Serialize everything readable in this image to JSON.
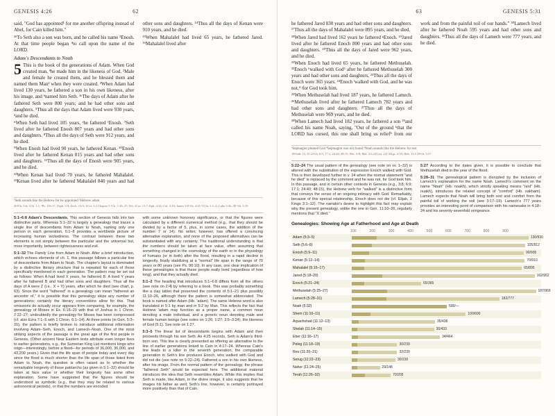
{
  "leftPage": {
    "book": "GENESIS 4:26",
    "pageNum": "62",
    "lead": "said, \"God has appointed¹ for me another offspring instead of Abel, for Cain killed him.\"",
    "v26": "²⁶To Seth also a son was born, and he called his name ³Enosh. At that time people began ⁴to call upon the name of the LORD.",
    "sectHead": "Adam's Descendants to Noah",
    "ch5start": "This is the book of the generations of Adam. When God created man, ªhe made him in the likeness of God. ²Male and female he created them, and he blessed them and named them Man² when they were created. ³When Adam had lived 130 years, he fathered a son in his own likeness, after his image, and ᵇnamed him Seth. ⁴ᶜThe days of Adam after he fathered Seth were 800 years; and he had other sons and daughters. ⁵Thus all the days that Adam lived were 930 years, ᵈand he died.",
    "col2a": "⁶When Seth had lived 105 years, ᵉhe fathered ᶠEnosh. ⁷Seth lived after he fathered Enosh 807 years and had other sons and daughters. ⁸Thus all the days of Seth were 912 years, and he died.",
    "col2b": "⁹When Enosh had lived 90 years, he fathered Kenan. ¹⁰Enosh lived after he fathered Kenan 815 years and had other sons and daughters. ¹¹Thus all the days of Enosh were 905 years, and he died.",
    "col2c": "¹²When Kenan had lived 70 years, he fathered Mahalalel. ¹³Kenan lived after he fathered Mahalalel 840 years and had other sons and daughters. ¹⁴Thus all the days of Kenan were 910 years, and he died.",
    "col2d": "¹⁵When Mahalalel had lived 65 years, he fathered Jared. ¹⁶Mahalalel lived after",
    "footnote": "¹Seth sounds like the Hebrew for he appointed ²Hebrew adam",
    "xref": "26¹Ch. 5:6; 1Ch. 1:1; ²Ps. 116:17; Zeph. 3:9; Zech. 13:9; 1Cor. 1:2 Chapter 5 ¹Ch. 1:26, 27; 9:6; 1Cor. 11:7; Eph. 4:24; Col. 3:10; James 3:9 ²ch. 4:25 ³1Chr. 1:1–4; Luke 3:36–38 ⁴ch. 3:19",
    "commentaryTitle1": "5:1–6:8 Adam's Descendants.",
    "commentary1a": "This section of Genesis falls into two distinctive parts. Whereas 5:1–32 is largely a genealogy that traces a single line of descendants from Adam to Noah, naming only one person in each generation, 6:1–8 provides a worldwide picture of increasing human wickedness. The contrast between these two elements is not simply between the particular and the universal but, more importantly, between righteousness and evil.",
    "commentaryTitle2": "5:1–32",
    "commentary1b": "The Family Line from Adam to Noah. After a brief introduction, which echoes elements of ch. 1, this passage follows a particular line of descendants from Adam to Noah. The chapter's layout is dominated by a distinctive literary structure that is repeated for each of those specifically mentioned in each generation. The pattern may be set out as follows: When A had lived X years, he fathered B. A lived Y years after he fathered B and had other sons and daughters. Thus all the days of A were Z (i.e., X + Y) years, after which he died (see chart, p. 63). Since the word \"fathered\" in a genealogy can mean \"fathered an ancestor of,\" it is possible that this genealogy skips any number of generations; certainly the literary conventions allow for this. That omissions do actually occur appears from comparing, for example, the genealogy of Moses in Ex. 6:16–20 with that of Joshua in 1 Chron. 7:22–27; undoubtedly the genealogy for Moses has been compressed (cf. also Ezra 7:1–5 with 1 Chron. 6:1–14). At three points (in Gen. 5:3–31), the pattern is briefly broken to introduce additional information involving Adam–Seth, Enoch, and Lamech–Noah. One of the most striking aspects of the passage is the great age of the first people in Genesis. (Other ancient Near Eastern texts attribute even longer lives to earlier generations, e.g., the Sumerian King List mentions kings who reign—interestingly, before a flood—for periods of 36,000, 36,000, and 43,200 years.) Given that the life span of people today and every day since the flood is much shorter than the life span of those listed from Adam to Noah, the question is often raised as to whether the remarkable longevity of these patriarchs (as given in 5:1–32) should be taken at face value or whether their longevity has some other explanation. Some have suggested that the figures should be understood as symbolic (e.g., that they may be related to various astronomical periods), or that the numbers are encoded",
    "commentary1c": "with some unknown honorary significance, or that the figures were calculated by a different numerical method (e.g., that they should be divided by a factor of 5, plus, in some cases, the addition of the number 7 or 14). No writer, however, has offered a convincing alternative explanation, and none of the proposed alternatives can be substantiated with any certainty. The traditional understanding is that the numbers should be taken at face value, often assuming that something changed in the cosmology of the earth or in the physiology of humans (or in both) after the flood, resulting in a rapid decline in longevity, finally stabilizing at a \"normal\" life span in the range of 70 years or 80 years (see Ps. 90:10). In any case, one clear implication of these genealogies is that these people really lived (regardless of how long), and that they actually died.",
    "commentaryTitle3": "5:1–2",
    "commentary1d": "The heading that introduces 5:1–6:8 differs from all the others (see note on 2:4) by referring to a book. This was probably something like a clay tablet that preserved the contents of 5:1–21 plus possibly 11:10–26, although there the pattern is somewhat abbreviated. The book is named after Adam (Hb. 'adam). The same Hebrew word is also translated in 5:1 by man and in 5:2 by Man. This reflects the fact that Hebrew 'adam may function as a proper name, a common noun denoting a male individual, and a generic noun denoting male and female human beings (see notes on 1:26; 1:27; 2:5–3:24). the likeness of God (5:1). See note on 1:27.",
    "commentaryTitle4": "5:3–5",
    "commentary1e": "The linear list of descendants begins with Adam and then proceeds through his son Seth. As 4:25 records, Seth is Adam's third-born son. This line is clearly presented as offering an alternative to the line of earlier generations linked to Cain in 4:17–24. Whereas Cain's line leads to a killer in the seventh generation, the comparable generation in Seth's line produces Enoch, who walked with God and did not die (see note on 5:22–24). Fathered a son in his own likeness, after his image. From the normal pattern of the genealogy, the phrase \"fathered Seth\" would be expected here. The additional material introduces the idea that Seth resembles Adam. While this implies that Seth is made, like Adam, in the divine image, it also suggests that he images his father as well; Seth's line, however, is certainly portrayed more positively than that of Cain."
  },
  "rightPage": {
    "book": "GENESIS 5:31",
    "pageNum": "63",
    "col1a": "he fathered Jared 830 years and had other sons and daughters. ¹⁷Thus all the days of Mahalalel were 895 years, and he died.",
    "col1b": "¹⁸When Jared had lived 162 years he fathered ᵍEnoch. ¹⁹Jared lived after he fathered Enoch 800 years and had other sons and daughters. ²⁰Thus all the days of Jared were 962 years, and he died.",
    "col1c": "²¹When Enoch had lived 65 years, he fathered Methuselah. ²²Enoch ʰwalked with God³ after he fathered Methuselah 300 years and had other sons and daughters. ²³Thus all the days of Enoch were 365 years. ²⁴Enoch ⁱwalked with God, and he was not,⁴ ʲfor God took him.",
    "col2a": "²⁵When Methuselah had lived 187 years, he fathered Lamech. ²⁶Methuselah lived after he fathered Lamech 782 years and had other sons and daughters. ²⁷Thus all the days of Methuselah were 969 years, and he died.",
    "col2b": "²⁸When Lamech had lived 182 years, he fathered a son ²⁹and called his name Noah, saying, \"Out of the ground ᵏthat the LORD has cursed, this one shall bring us relief⁵ from our work and from the painful toil of our hands.\" ³⁰Lamech lived after he fathered Noah 595 years and had other sons and daughters. ³¹Thus all the days of Lamech were 777 years, and he died.",
    "footnote": "³Septuagint pleased God ⁴Septuagint was not found ⁵Noah sounds like the Hebrew for rest",
    "xref": "18ᵍJude 14, 15 22ʰch. 6:9; 17:1; 24:40; 48:15; Mic. 6:8; Mal. 2:6 24ⁱ[ver. 22] ʲ2Kgs. 2:10; Heb. 11:5 29ᵏch. 3:17",
    "commentaryTitle5": "5:22–24",
    "commentary2a": "The usual pattern of the genealogy (see note on vv. 1–32) is altered with the substitution of the expression Enoch walked with God. This is then developed further in v. 24 when the normal statement \"and he died\" is replaced by the comment and he was not, for God took him. In this passage, and in certain other contexts in Genesis (e.g., 3:8; 6:9; 17:1; 24:40; 48:15), the Hebrew verb for \"walked\" is a distinctive form that conveys the sense of an ongoing intimacy with God. Remarkably, because of this special relationship, Enoch does not die (cf. Elijah, 2 Kings 2:1–12). The narrator's desire to highlight this fact may explain why the present genealogy, unlike the one in Gen. 11:10–26, regularly mentions that \"X died.\"",
    "commentaryTitle6": "5:27",
    "commentary2b": "According to the dates given, it is possible to conclude that Methuselah died in the year of the flood.",
    "commentaryTitle7": "5:28–31",
    "commentary2c": "The genealogical pattern is disrupted by the inclusion of Lamech's explanation for the name Noah. Lamech's comment on the name \"Noah\" (Hb. noakh), which strictly speaking means \"rest\" (Hb. nuakh), introduces the related concept of \"comfort\" (Hb. nakham). Lamech expects that Noah will bring both rest and comfort from the painful toil of working the soil (see 3:17–19). Lamech's 777 years provides an interesting point of comparison with his namesake in 4:18–24 and his seventy-sevenfold vengeance."
  },
  "chartTitle": "Genealogies: Showing Age at Fatherhood and Age at Death",
  "axisLabels": [
    "100",
    "200",
    "300",
    "400",
    "500",
    "600",
    "700",
    "800",
    "900"
  ],
  "chartRows": [
    {
      "name": "Adam (5:3–5)",
      "father": 130,
      "death": 930
    },
    {
      "name": "Seth (5:6–8)",
      "father": 105,
      "death": 912
    },
    {
      "name": "Enosh (5:9–11)",
      "father": 90,
      "death": 905
    },
    {
      "name": "Kenan (5:12–14)",
      "father": 70,
      "death": 910
    },
    {
      "name": "Mahalalel (5:15–17)",
      "father": 65,
      "death": 895
    },
    {
      "name": "Jared (5:18–20)",
      "father": 162,
      "death": 962
    },
    {
      "name": "Enoch (5:21–24)",
      "father": 65,
      "death": 365
    },
    {
      "name": "Methuselah (5:25–27)",
      "father": 187,
      "death": 969
    },
    {
      "name": "Lamech (5:28–31)",
      "father": 182,
      "death": 777
    },
    {
      "name": "Noah (5:32)",
      "father": 500,
      "death": null
    },
    {
      "name": "Shem (11:10–11)",
      "father": 100,
      "death": 600
    },
    {
      "name": "Arpachshad (11:12–13)",
      "father": 35,
      "death": 438
    },
    {
      "name": "Shelah (11:14–15)",
      "father": 30,
      "death": 433
    },
    {
      "name": "Eber (11:16–17)",
      "father": 34,
      "death": 464
    },
    {
      "name": "Peleg (11:18–19)",
      "father": 30,
      "death": 239
    },
    {
      "name": "Reu (11:20–21)",
      "father": 32,
      "death": 239
    },
    {
      "name": "Serug (11:22–23)",
      "father": 30,
      "death": 230
    },
    {
      "name": "Nahor (11:24–25)",
      "father": 29,
      "death": 148
    },
    {
      "name": "Terah (11:26–32)",
      "father": 70,
      "death": 205
    }
  ],
  "chartStyle": {
    "scale": 0.274,
    "fatherColor": "#b8ab72",
    "deathColor": "#d8d0a8"
  }
}
